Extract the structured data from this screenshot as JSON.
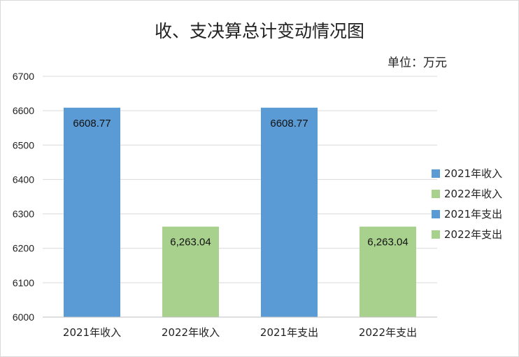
{
  "chart_data": {
    "type": "bar",
    "title": "收、支决算总计变动情况图",
    "unit_label": "单位：万元",
    "categories": [
      "2021年收入",
      "2022年收入",
      "2021年支出",
      "2022年支出"
    ],
    "values": [
      6608.77,
      6263.04,
      6608.77,
      6263.04
    ],
    "data_labels": [
      "6608.77",
      "6,263.04",
      "6608.77",
      "6,263.04"
    ],
    "bar_colors": [
      "#5b9bd5",
      "#a9d18e",
      "#5b9bd5",
      "#a9d18e"
    ],
    "ylim": [
      6000,
      6700
    ],
    "yticks": [
      6000,
      6100,
      6200,
      6300,
      6400,
      6500,
      6600,
      6700
    ],
    "grid": true,
    "legend_position": "right",
    "legend": [
      {
        "name": "2021年收入",
        "color": "#5b9bd5"
      },
      {
        "name": "2022年收入",
        "color": "#a9d18e"
      },
      {
        "name": "2021年支出",
        "color": "#5b9bd5"
      },
      {
        "name": "2022年支出",
        "color": "#a9d18e"
      }
    ]
  }
}
